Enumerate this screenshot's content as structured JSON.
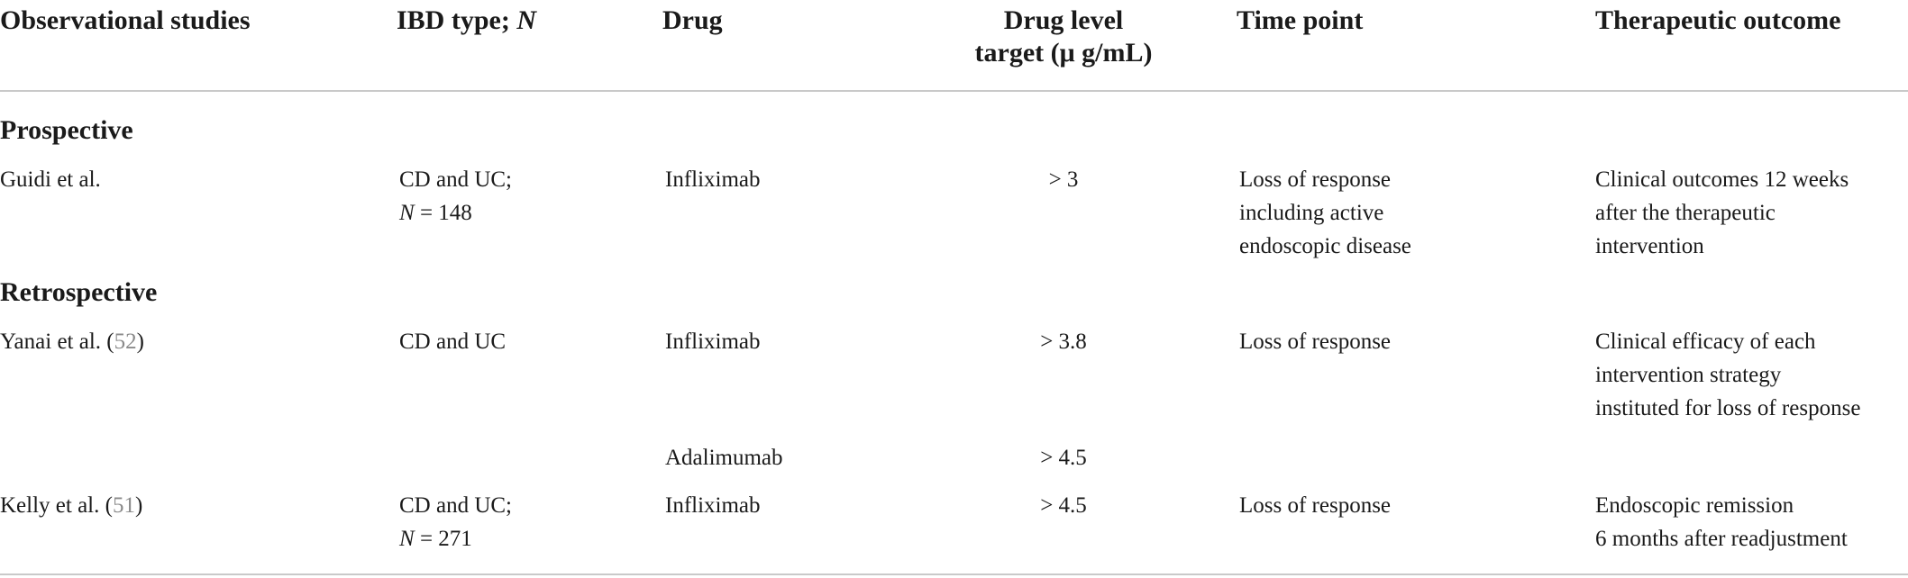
{
  "table": {
    "columns": [
      {
        "label": "Observational studies"
      },
      {
        "label_main": "IBD type; ",
        "label_italic": "N"
      },
      {
        "label": "Drug"
      },
      {
        "line1": "Drug level",
        "line2": "target (μ g/mL)"
      },
      {
        "label": "Time point"
      },
      {
        "label": "Therapeutic outcome"
      }
    ],
    "sections": [
      {
        "title": "Prospective",
        "rows": [
          {
            "study": "Guidi et al.",
            "ibd_line1": "CD and UC;",
            "ibd_n_label": "N",
            "ibd_n_value": " = 148",
            "drug": "Infliximab",
            "level": "> 3",
            "time_lines": [
              "Loss of response",
              "including active",
              "endoscopic disease"
            ],
            "outcome_lines": [
              "Clinical outcomes 12 weeks",
              "after the therapeutic",
              "intervention"
            ]
          }
        ]
      },
      {
        "title": "Retrospective",
        "rows": [
          {
            "study_name": "Yanai et al. (",
            "study_ref": "52",
            "study_close": ")",
            "ibd_line1": "CD and UC",
            "drug": "Infliximab",
            "level": "> 3.8",
            "time_lines": [
              "Loss of response"
            ],
            "outcome_lines": [
              "Clinical efficacy of each",
              "intervention strategy",
              "instituted for loss of response"
            ]
          },
          {
            "drug": "Adalimumab",
            "level": "> 4.5"
          },
          {
            "study_name": "Kelly et al. (",
            "study_ref": "51",
            "study_close": ")",
            "ibd_line1": "CD and UC;",
            "ibd_n_label": "N",
            "ibd_n_value": " = 271",
            "drug": "Infliximab",
            "level": "> 4.5",
            "time_lines": [
              "Loss of response"
            ],
            "outcome_lines": [
              "Endoscopic remission",
              "6 months after readjustment"
            ]
          }
        ]
      }
    ]
  }
}
